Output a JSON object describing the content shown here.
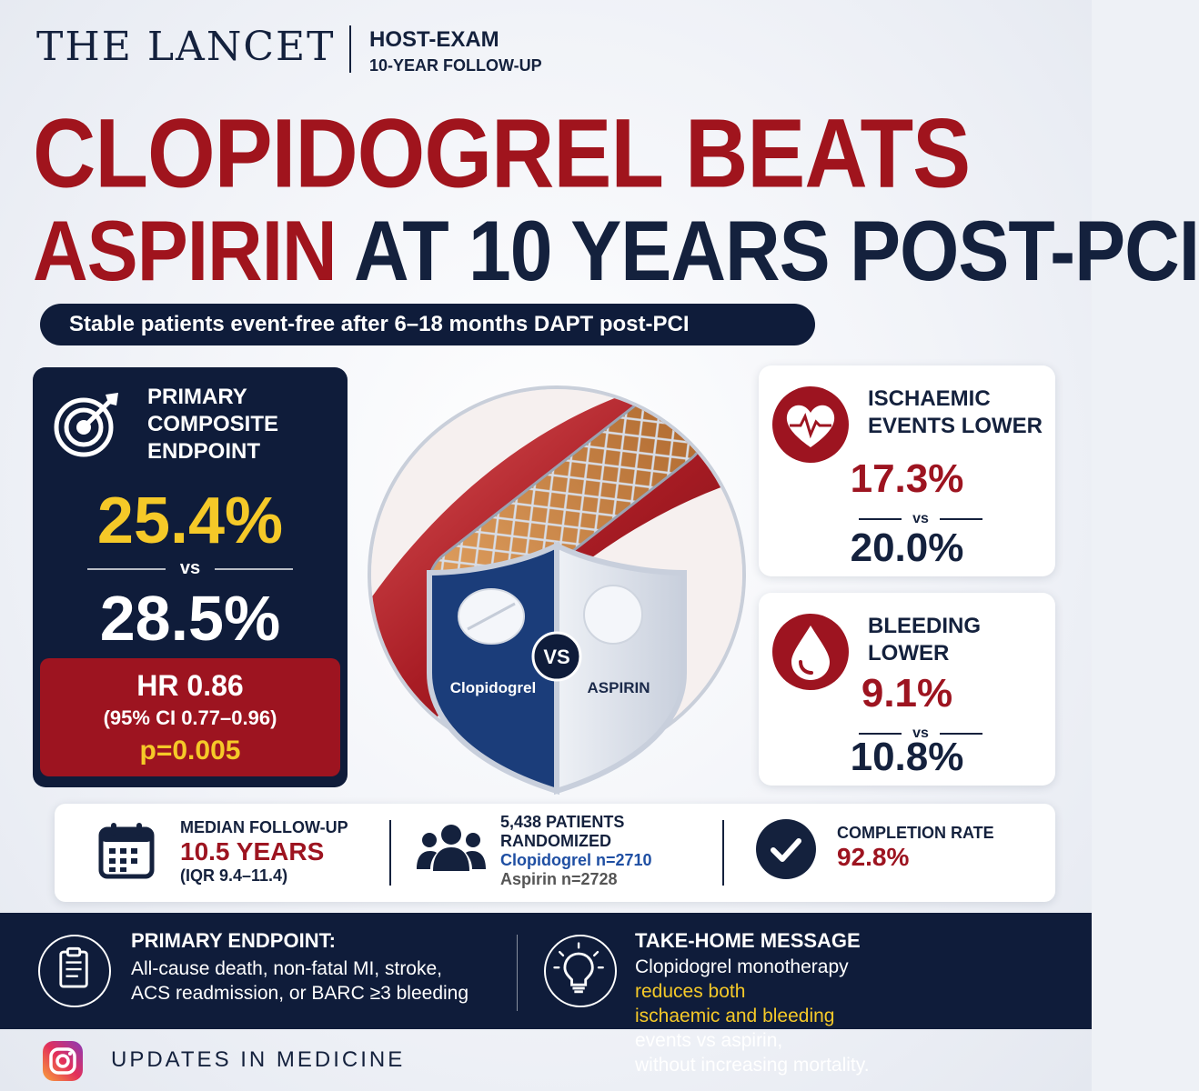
{
  "header": {
    "brand": "THE LANCET",
    "series": "HOST-EXAM",
    "series_sub": "10-YEAR FOLLOW-UP"
  },
  "headline": {
    "line1": "CLOPIDOGREL BEATS",
    "line2_red": "ASPIRIN",
    "line2_navy": "AT 10 YEARS POST-PCI"
  },
  "subtitle": "Stable patients event-free after 6–18 months DAPT post-PCI",
  "primary": {
    "title_lines": [
      "PRIMARY",
      "COMPOSITE",
      "ENDPOINT"
    ],
    "clopidogrel_value": "25.4%",
    "vs": "vs",
    "aspirin_value": "28.5%",
    "hr": "HR 0.86",
    "ci": "(95% CI 0.77–0.96)",
    "p": "p=0.005"
  },
  "shield": {
    "vs": "VS",
    "left_label": "Clopidogrel",
    "right_label": "ASPIRIN"
  },
  "ischaemic": {
    "title_lines": [
      "ISCHAEMIC",
      "EVENTS LOWER"
    ],
    "clopidogrel_value": "17.3%",
    "vs": "vs",
    "aspirin_value": "20.0%"
  },
  "bleeding": {
    "title_lines": [
      "BLEEDING",
      "LOWER"
    ],
    "clopidogrel_value": "9.1%",
    "vs": "vs",
    "aspirin_value": "10.8%"
  },
  "stats": {
    "followup_label": "MEDIAN FOLLOW-UP",
    "followup_value": "10.5 YEARS",
    "followup_iqr": "(IQR 9.4–11.4)",
    "patients_lines": [
      "5,438 PATIENTS",
      "RANDOMIZED"
    ],
    "clopidogrel_n": "Clopidogrel n=2710",
    "aspirin_n": "Aspirin n=2728",
    "completion_label": "COMPLETION RATE",
    "completion_value": "92.8%"
  },
  "endpoint_def": {
    "title": "PRIMARY ENDPOINT:",
    "lines": [
      "All-cause death, non-fatal MI, stroke,",
      "ACS readmission, or BARC ≥3 bleeding"
    ]
  },
  "takehome": {
    "title": "TAKE-HOME MESSAGE",
    "l1_a": "Clopidogrel monotherapy ",
    "l1_hl": "reduces both",
    "l2_hl": "ischaemic and bleeding",
    "l2_b": " events vs aspirin,",
    "l3": "without increasing mortality."
  },
  "footer": {
    "handle": "UPDATES IN MEDICINE"
  },
  "colors": {
    "navy": "#0f1c3a",
    "red": "#9d1420",
    "yellow": "#f5c928",
    "blue": "#1f4fa3"
  }
}
